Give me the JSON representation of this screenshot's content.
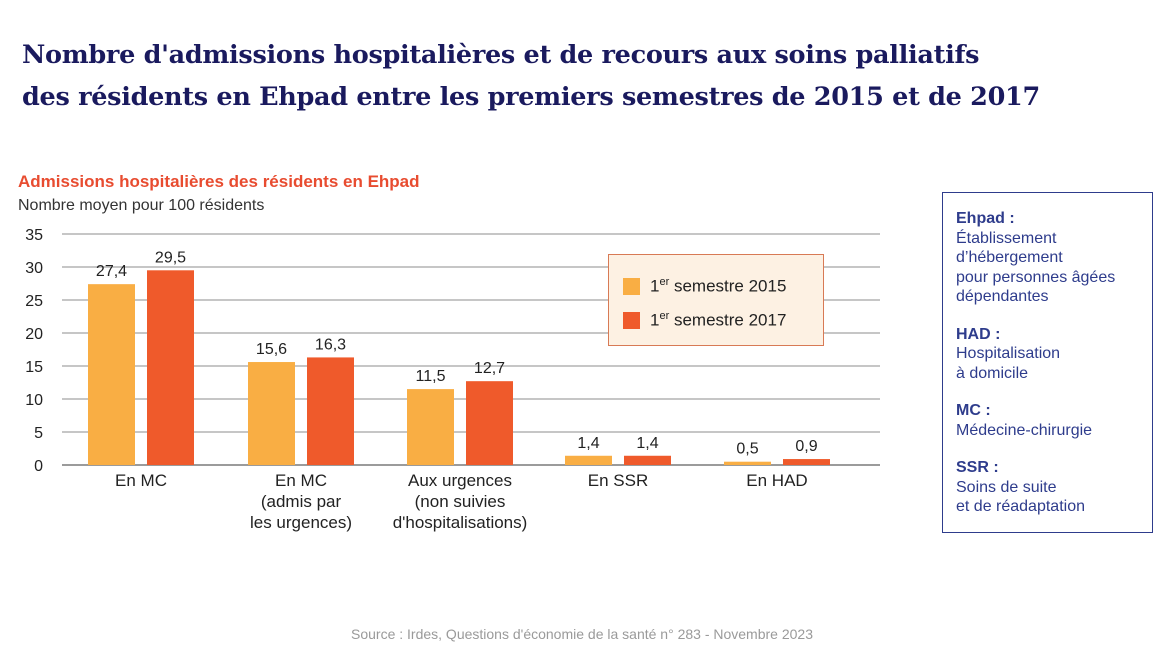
{
  "title": {
    "line1": "Nombre d'admissions hospitalières et de recours aux soins palliatifs",
    "line2": "des résidents en Ehpad entre les premiers semestres de 2015 et de 2017"
  },
  "chart_data": {
    "type": "bar",
    "title": "Admissions hospitalières des résidents en Ehpad",
    "ylabel": "Nombre moyen pour 100 résidents",
    "xlabel": "",
    "ylim": [
      0,
      35
    ],
    "yticks": [
      0,
      5,
      10,
      15,
      20,
      25,
      30,
      35
    ],
    "grid": true,
    "legend_position": "top-right",
    "categories": [
      [
        "En MC"
      ],
      [
        "En MC",
        "(admis par",
        "les urgences)"
      ],
      [
        "Aux urgences",
        "(non suivies",
        "d'hospitalisations)"
      ],
      [
        "En SSR"
      ],
      [
        "En HAD"
      ]
    ],
    "series": [
      {
        "name": "1er semestre 2015",
        "label_base": "1",
        "label_sup": "er",
        "label_rest": " semestre 2015",
        "color": "#f9ae44",
        "values": [
          27.4,
          15.6,
          11.5,
          1.4,
          0.5
        ],
        "labels": [
          "27,4",
          "15,6",
          "11,5",
          "1,4",
          "0,5"
        ]
      },
      {
        "name": "1er semestre 2017",
        "label_base": "1",
        "label_sup": "er",
        "label_rest": " semestre 2017",
        "color": "#ef5a2b",
        "values": [
          29.5,
          16.3,
          12.7,
          1.4,
          0.9
        ],
        "labels": [
          "29,5",
          "16,3",
          "12,7",
          "1,4",
          "0,9"
        ]
      }
    ]
  },
  "glossary": [
    {
      "term": "Ehpad :",
      "definition": [
        "Établissement",
        "d’hébergement",
        "pour personnes âgées",
        "dépendantes"
      ]
    },
    {
      "term": "HAD :",
      "definition": [
        "Hospitalisation",
        "à domicile"
      ]
    },
    {
      "term": "MC :",
      "definition": [
        "Médecine-chirurgie"
      ]
    },
    {
      "term": "SSR :",
      "definition": [
        "Soins de suite",
        "et de réadaptation"
      ]
    }
  ],
  "source": "Source : Irdes, Questions d'économie de la santé n° 283 - Novembre 2023"
}
